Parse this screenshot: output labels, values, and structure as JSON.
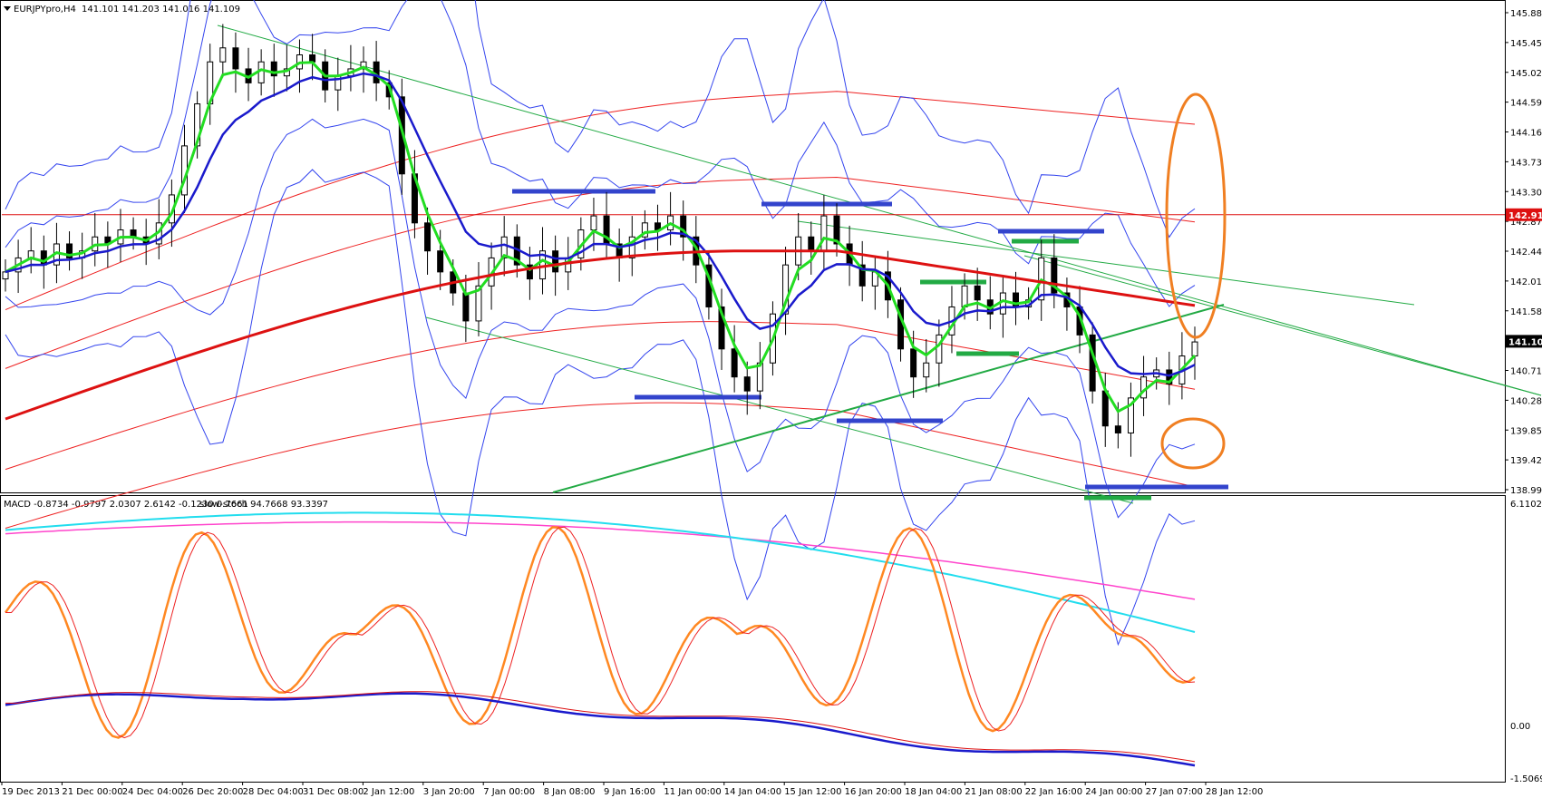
{
  "header": {
    "symbol": "EURJPYpro,H4",
    "ohlc": "141.101 141.203 141.016 141.109",
    "macd_label": "MACD -0.8734 -0.9797 2.0307 2.6142 -0.1230 0.7661",
    "stoch_label": "slow-stoch 94.7668 93.3397"
  },
  "price_tags": {
    "resistance": "142.917",
    "current": "141.109"
  },
  "colors": {
    "candle": "#000000",
    "ema_fast": "#22dd22",
    "ema_slow": "#1a1acc",
    "ma_long": "#dd1111",
    "bands_inner": "#3344ee",
    "envelope": "#ee2222",
    "trendline": "#22aa44",
    "hline_blue": "#3344cc",
    "hline_green": "#22aa44",
    "highlight": "#f07f22",
    "macd_signal_a": "#ff44cc",
    "macd_signal_b": "#22ddee",
    "macd_line": "#1a1acc",
    "stoch_main": "#ff8822",
    "stoch_signal": "#ee2222",
    "resistance_line": "#dd1111"
  },
  "chart_data": [
    {
      "type": "candlestick",
      "panel": "price",
      "symbol": "EURJPYpro",
      "timeframe": "H4",
      "y_ticks": [
        "145.880",
        "145.450",
        "145.020",
        "144.590",
        "144.160",
        "143.730",
        "143.300",
        "142.870",
        "142.440",
        "142.010",
        "141.580",
        "141.109",
        "140.710",
        "140.280",
        "139.850",
        "139.420",
        "138.990"
      ],
      "x_ticks": [
        "19 Dec 2013",
        "21 Dec 00:00",
        "24 Dec 04:00",
        "26 Dec 20:00",
        "28 Dec 04:00",
        "31 Dec 08:00",
        "2 Jan 12:00",
        "3 Jan 20:00",
        "7 Jan 00:00",
        "8 Jan 08:00",
        "9 Jan 16:00",
        "11 Jan 00:00",
        "14 Jan 04:00",
        "15 Jan 12:00",
        "16 Jan 20:00",
        "18 Jan 04:00",
        "21 Jan 08:00",
        "22 Jan 16:00",
        "24 Jan 00:00",
        "27 Jan 07:00",
        "28 Jan 12:00"
      ],
      "ylim": [
        138.99,
        145.88
      ],
      "close_series": [
        142.1,
        142.3,
        142.4,
        142.2,
        142.5,
        142.3,
        142.4,
        142.6,
        142.5,
        142.7,
        142.6,
        142.5,
        142.8,
        143.2,
        143.9,
        144.5,
        145.1,
        145.3,
        145.0,
        144.8,
        145.1,
        144.9,
        145.0,
        145.2,
        145.1,
        144.7,
        144.9,
        145.0,
        145.1,
        144.8,
        144.6,
        143.5,
        142.8,
        142.4,
        142.1,
        141.8,
        141.4,
        141.9,
        142.3,
        142.6,
        142.2,
        142.0,
        142.4,
        142.1,
        142.3,
        142.7,
        142.9,
        142.5,
        142.3,
        142.6,
        142.8,
        142.7,
        142.9,
        142.6,
        142.2,
        141.6,
        141.0,
        140.6,
        140.4,
        140.8,
        141.5,
        142.2,
        142.6,
        142.4,
        142.9,
        142.5,
        142.2,
        141.9,
        142.1,
        141.7,
        141.0,
        140.6,
        140.8,
        141.2,
        141.6,
        141.9,
        141.7,
        141.5,
        141.8,
        141.6,
        141.7,
        142.3,
        141.8,
        141.6,
        141.2,
        140.4,
        139.9,
        139.8,
        140.3,
        140.6,
        140.7,
        140.5,
        140.9,
        141.1
      ],
      "horizontal_levels": [
        142.917,
        141.109
      ]
    },
    {
      "type": "line",
      "panel": "oscillator",
      "indicators": [
        "MACD",
        "slow-stoch"
      ],
      "y_ticks": [
        "6.1102",
        "0.00",
        "-1.5069"
      ],
      "ylim": [
        -1.5069,
        6.1102
      ],
      "macd_values": [
        -0.8734,
        -0.9797,
        2.0307,
        2.6142,
        -0.123,
        0.7661
      ],
      "stoch_values": [
        94.7668,
        93.3397
      ]
    }
  ]
}
